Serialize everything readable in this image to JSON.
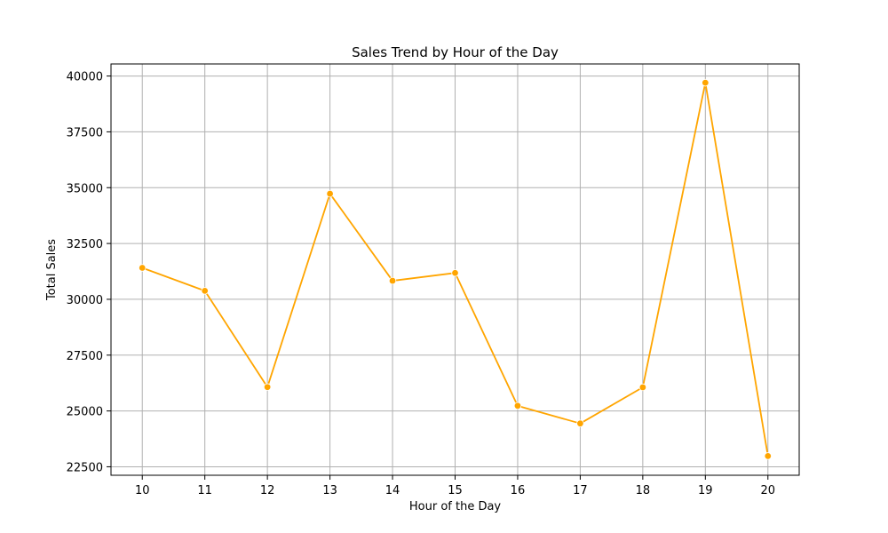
{
  "chart_data": {
    "type": "line",
    "title": "Sales Trend by Hour of the Day",
    "xlabel": "Hour of the Day",
    "ylabel": "Total Sales",
    "x": [
      10,
      11,
      12,
      13,
      14,
      15,
      16,
      17,
      18,
      19,
      20
    ],
    "x_tick_labels": [
      "10",
      "11",
      "12",
      "13",
      "14",
      "15",
      "16",
      "17",
      "18",
      "19",
      "20"
    ],
    "series": [
      {
        "values": [
          31410,
          30380,
          26070,
          34730,
          30830,
          31180,
          25230,
          24440,
          26060,
          39700,
          22980
        ]
      }
    ],
    "y_ticks": [
      22500,
      25000,
      27500,
      30000,
      32500,
      35000,
      37500,
      40000
    ],
    "y_tick_labels": [
      "22500",
      "25000",
      "27500",
      "30000",
      "32500",
      "35000",
      "37500",
      "40000"
    ],
    "xlim": [
      9.5,
      20.5
    ],
    "ylim": [
      22120,
      40540
    ],
    "grid": true,
    "line_color": "#ffa500",
    "grid_color": "#b0b0b0"
  }
}
